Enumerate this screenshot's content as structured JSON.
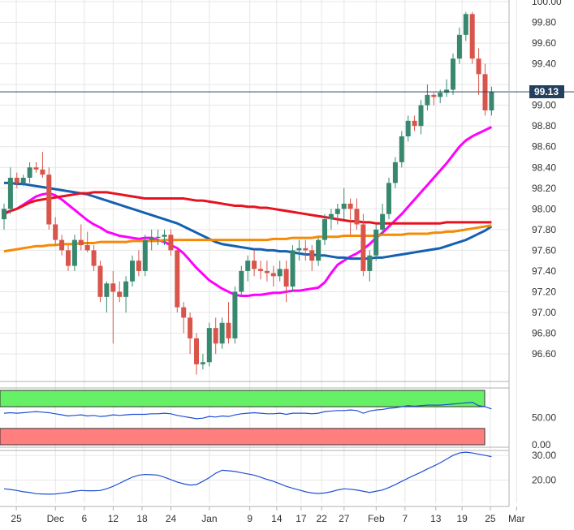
{
  "chart_data": [
    {
      "type": "candlestick",
      "name_visible": false,
      "y_range": [
        96.4,
        100.0
      ],
      "y_ticks": [
        "100.00",
        "99.80",
        "99.60",
        "99.40",
        "99.20",
        "99.00",
        "98.80",
        "98.60",
        "98.40",
        "98.20",
        "98.00",
        "97.80",
        "97.60",
        "97.40",
        "97.20",
        "97.00",
        "96.80",
        "96.60"
      ],
      "last_price": "99.13",
      "x_labels": [
        "25",
        "Dec",
        "6",
        "12",
        "18",
        "24",
        "Jan",
        "9",
        "14",
        "17",
        "22",
        "27",
        "Feb",
        "7",
        "13",
        "19",
        "25",
        "Mar"
      ],
      "candles_ohlc": [
        [
          97.9,
          98.05,
          97.8,
          98.0
        ],
        [
          98.0,
          98.4,
          97.95,
          98.3
        ],
        [
          98.3,
          98.35,
          98.2,
          98.25
        ],
        [
          98.25,
          98.33,
          98.22,
          98.3
        ],
        [
          98.3,
          98.45,
          98.25,
          98.4
        ],
        [
          98.4,
          98.45,
          98.35,
          98.38
        ],
        [
          98.38,
          98.55,
          98.3,
          98.33
        ],
        [
          98.33,
          98.4,
          97.8,
          97.85
        ],
        [
          97.85,
          97.92,
          97.65,
          97.7
        ],
        [
          97.7,
          97.75,
          97.55,
          97.6
        ],
        [
          97.6,
          97.65,
          97.4,
          97.45
        ],
        [
          97.45,
          97.75,
          97.4,
          97.7
        ],
        [
          97.7,
          97.85,
          97.6,
          97.65
        ],
        [
          97.65,
          97.78,
          97.58,
          97.6
        ],
        [
          97.6,
          97.65,
          97.4,
          97.45
        ],
        [
          97.45,
          97.5,
          97.1,
          97.15
        ],
        [
          97.15,
          97.3,
          97.0,
          97.28
        ],
        [
          97.28,
          97.4,
          96.7,
          97.2
        ],
        [
          97.2,
          97.3,
          97.1,
          97.15
        ],
        [
          97.15,
          97.35,
          97.0,
          97.3
        ],
        [
          97.3,
          97.55,
          97.25,
          97.5
        ],
        [
          97.5,
          97.6,
          97.35,
          97.4
        ],
        [
          97.4,
          97.75,
          97.35,
          97.7
        ],
        [
          97.7,
          97.8,
          97.6,
          97.72
        ],
        [
          97.72,
          97.8,
          97.65,
          97.73
        ],
        [
          97.73,
          97.8,
          97.65,
          97.75
        ],
        [
          97.75,
          97.8,
          97.55,
          97.6
        ],
        [
          97.6,
          97.62,
          97.0,
          97.05
        ],
        [
          97.05,
          97.1,
          96.8,
          96.95
        ],
        [
          96.95,
          97.0,
          96.6,
          96.75
        ],
        [
          96.75,
          96.8,
          96.4,
          96.5
        ],
        [
          96.5,
          96.6,
          96.45,
          96.52
        ],
        [
          96.52,
          96.9,
          96.48,
          96.85
        ],
        [
          96.85,
          96.95,
          96.6,
          96.7
        ],
        [
          96.7,
          96.95,
          96.65,
          96.9
        ],
        [
          96.9,
          97.1,
          96.7,
          96.75
        ],
        [
          96.75,
          97.25,
          96.7,
          97.2
        ],
        [
          97.2,
          97.45,
          97.15,
          97.4
        ],
        [
          97.4,
          97.55,
          97.3,
          97.5
        ],
        [
          97.5,
          97.6,
          97.35,
          97.42
        ],
        [
          97.42,
          97.5,
          97.32,
          97.4
        ],
        [
          97.4,
          97.5,
          97.3,
          97.38
        ],
        [
          97.38,
          97.45,
          97.25,
          97.35
        ],
        [
          97.35,
          97.5,
          97.3,
          97.42
        ],
        [
          97.42,
          97.5,
          97.1,
          97.25
        ],
        [
          97.25,
          97.65,
          97.2,
          97.6
        ],
        [
          97.6,
          97.7,
          97.5,
          97.62
        ],
        [
          97.62,
          97.7,
          97.5,
          97.6
        ],
        [
          97.6,
          97.65,
          97.4,
          97.5
        ],
        [
          97.5,
          97.72,
          97.45,
          97.7
        ],
        [
          97.7,
          97.95,
          97.65,
          97.9
        ],
        [
          97.9,
          98.0,
          97.8,
          97.95
        ],
        [
          97.95,
          98.05,
          97.85,
          98.0
        ],
        [
          98.0,
          98.2,
          97.9,
          98.05
        ],
        [
          98.05,
          98.1,
          97.75,
          98.0
        ],
        [
          98.0,
          98.1,
          97.8,
          97.85
        ],
        [
          97.85,
          97.95,
          97.35,
          97.4
        ],
        [
          97.4,
          97.6,
          97.3,
          97.55
        ],
        [
          97.55,
          97.85,
          97.5,
          97.8
        ],
        [
          97.8,
          98.05,
          97.75,
          97.95
        ],
        [
          97.95,
          98.3,
          97.9,
          98.25
        ],
        [
          98.25,
          98.5,
          98.2,
          98.45
        ],
        [
          98.45,
          98.75,
          98.4,
          98.7
        ],
        [
          98.7,
          98.9,
          98.65,
          98.85
        ],
        [
          98.85,
          98.9,
          98.75,
          98.8
        ],
        [
          98.8,
          99.05,
          98.72,
          99.0
        ],
        [
          99.0,
          99.2,
          98.95,
          99.1
        ],
        [
          99.1,
          99.12,
          99.0,
          99.08
        ],
        [
          99.08,
          99.15,
          99.02,
          99.12
        ],
        [
          99.12,
          99.25,
          99.08,
          99.15
        ],
        [
          99.15,
          99.5,
          99.1,
          99.45
        ],
        [
          99.45,
          99.75,
          99.4,
          99.68
        ],
        [
          99.68,
          99.9,
          99.62,
          99.88
        ],
        [
          99.88,
          99.9,
          99.4,
          99.45
        ],
        [
          99.45,
          99.55,
          99.1,
          99.3
        ],
        [
          99.3,
          99.4,
          98.9,
          98.95
        ],
        [
          98.95,
          99.18,
          98.9,
          99.13
        ]
      ],
      "ma_lines": [
        {
          "color": "#ff00ff",
          "values": [
            97.96,
            97.98,
            98.0,
            98.04,
            98.08,
            98.12,
            98.14,
            98.15,
            98.13,
            98.09,
            98.04,
            97.99,
            97.94,
            97.89,
            97.85,
            97.82,
            97.78,
            97.76,
            97.74,
            97.73,
            97.72,
            97.71,
            97.72,
            97.72,
            97.7,
            97.68,
            97.65,
            97.62,
            97.57,
            97.5,
            97.43,
            97.37,
            97.31,
            97.27,
            97.23,
            97.2,
            97.17,
            97.16,
            97.16,
            97.17,
            97.17,
            97.18,
            97.19,
            97.19,
            97.2,
            97.21,
            97.21,
            97.22,
            97.23,
            97.24,
            97.29,
            97.38,
            97.46,
            97.5,
            97.54,
            97.57,
            97.61,
            97.66,
            97.72,
            97.77,
            97.83,
            97.89,
            97.95,
            98.02,
            98.09,
            98.16,
            98.23,
            98.3,
            98.37,
            98.44,
            98.52,
            98.6,
            98.66,
            98.7,
            98.73,
            98.76,
            98.79
          ]
        },
        {
          "color": "#1560b0",
          "values": [
            98.25,
            98.25,
            98.24,
            98.24,
            98.23,
            98.22,
            98.21,
            98.2,
            98.19,
            98.18,
            98.17,
            98.16,
            98.15,
            98.14,
            98.12,
            98.1,
            98.08,
            98.06,
            98.04,
            98.02,
            98.0,
            97.98,
            97.96,
            97.94,
            97.92,
            97.9,
            97.88,
            97.86,
            97.83,
            97.8,
            97.77,
            97.74,
            97.71,
            97.68,
            97.66,
            97.65,
            97.64,
            97.63,
            97.62,
            97.61,
            97.61,
            97.6,
            97.6,
            97.59,
            97.59,
            97.58,
            97.57,
            97.56,
            97.56,
            97.55,
            97.55,
            97.54,
            97.53,
            97.53,
            97.52,
            97.52,
            97.52,
            97.52,
            97.53,
            97.53,
            97.54,
            97.55,
            97.56,
            97.57,
            97.58,
            97.59,
            97.6,
            97.61,
            97.62,
            97.64,
            97.66,
            97.68,
            97.7,
            97.73,
            97.76,
            97.79,
            97.83
          ]
        },
        {
          "color": "#e8111f",
          "values": [
            97.95,
            97.98,
            98.0,
            98.03,
            98.06,
            98.08,
            98.09,
            98.1,
            98.11,
            98.12,
            98.13,
            98.14,
            98.15,
            98.15,
            98.16,
            98.16,
            98.16,
            98.15,
            98.14,
            98.13,
            98.12,
            98.11,
            98.1,
            98.1,
            98.1,
            98.1,
            98.1,
            98.1,
            98.1,
            98.09,
            98.08,
            98.08,
            98.07,
            98.06,
            98.05,
            98.04,
            98.03,
            98.03,
            98.02,
            98.02,
            98.01,
            98.01,
            98.0,
            97.99,
            97.98,
            97.97,
            97.96,
            97.95,
            97.94,
            97.93,
            97.92,
            97.91,
            97.9,
            97.89,
            97.88,
            97.88,
            97.87,
            97.87,
            97.86,
            97.86,
            97.86,
            97.86,
            97.86,
            97.86,
            97.86,
            97.86,
            97.86,
            97.86,
            97.86,
            97.87,
            97.87,
            97.87,
            97.87,
            97.87,
            97.87,
            97.87,
            97.87
          ]
        },
        {
          "color": "#f58a07",
          "values": [
            97.59,
            97.6,
            97.61,
            97.62,
            97.63,
            97.64,
            97.64,
            97.65,
            97.65,
            97.66,
            97.66,
            97.66,
            97.67,
            97.67,
            97.67,
            97.68,
            97.68,
            97.68,
            97.68,
            97.68,
            97.69,
            97.69,
            97.69,
            97.69,
            97.69,
            97.7,
            97.7,
            97.7,
            97.7,
            97.7,
            97.7,
            97.7,
            97.7,
            97.7,
            97.7,
            97.7,
            97.7,
            97.7,
            97.7,
            97.7,
            97.7,
            97.7,
            97.71,
            97.71,
            97.71,
            97.72,
            97.72,
            97.72,
            97.72,
            97.73,
            97.73,
            97.73,
            97.73,
            97.74,
            97.74,
            97.74,
            97.74,
            97.74,
            97.74,
            97.75,
            97.75,
            97.75,
            97.75,
            97.76,
            97.76,
            97.76,
            97.76,
            97.77,
            97.77,
            97.78,
            97.78,
            97.79,
            97.8,
            97.81,
            97.82,
            97.83,
            97.84
          ]
        }
      ]
    },
    {
      "type": "line",
      "y_ticks": [
        "50.00",
        "0.00"
      ],
      "y_range": [
        0,
        100
      ],
      "overbought_band": [
        70,
        100
      ],
      "oversold_band": [
        0,
        30
      ],
      "band_colors": [
        "#66f066",
        "#ff7f7f"
      ],
      "line_color": "#1f4fd6",
      "values": [
        58,
        59,
        58,
        59,
        60,
        61,
        60,
        59,
        57,
        55,
        53,
        54,
        55,
        53,
        54,
        52,
        53,
        55,
        54,
        55,
        56,
        56,
        56,
        57,
        57,
        58,
        57,
        54,
        52,
        50,
        48,
        49,
        52,
        51,
        53,
        52,
        55,
        57,
        58,
        59,
        58,
        57,
        57,
        58,
        56,
        58,
        58,
        58,
        57,
        58,
        61,
        62,
        63,
        63,
        64,
        63,
        58,
        62,
        64,
        65,
        67,
        68,
        70,
        72,
        71,
        72,
        73,
        73,
        73,
        74,
        75,
        76,
        77,
        78,
        72,
        70,
        66
      ]
    },
    {
      "type": "line",
      "y_ticks": [
        "30.00",
        "20.00"
      ],
      "y_range": [
        10,
        32
      ],
      "line_color": "#1f4fd6",
      "values": [
        16.5,
        16.2,
        15.8,
        15.3,
        15.0,
        14.5,
        14.4,
        14.3,
        14.4,
        14.7,
        15.0,
        15.5,
        15.8,
        15.7,
        15.7,
        15.8,
        16.5,
        17.5,
        18.7,
        20.0,
        21.2,
        22.0,
        22.3,
        22.2,
        22.0,
        21.2,
        20.2,
        19.2,
        18.5,
        18.0,
        18.2,
        19.5,
        21.0,
        22.8,
        24.0,
        23.8,
        23.5,
        23.0,
        22.5,
        22.0,
        21.2,
        20.3,
        19.5,
        18.5,
        17.5,
        16.7,
        16.0,
        15.3,
        14.8,
        14.6,
        14.8,
        15.3,
        16.0,
        16.5,
        16.3,
        16.0,
        15.5,
        15.0,
        15.5,
        16.0,
        17.0,
        18.2,
        19.5,
        20.8,
        22.0,
        23.2,
        24.5,
        25.7,
        27.0,
        28.5,
        30.0,
        31.0,
        31.3,
        31.0,
        30.5,
        30.0,
        29.5
      ]
    }
  ],
  "colors": {
    "up_candle": "#37886e",
    "down_candle": "#d9544a",
    "last_price_line": "#24405f",
    "grid": "#e6e6e6",
    "axis": "#b0b0b0"
  }
}
